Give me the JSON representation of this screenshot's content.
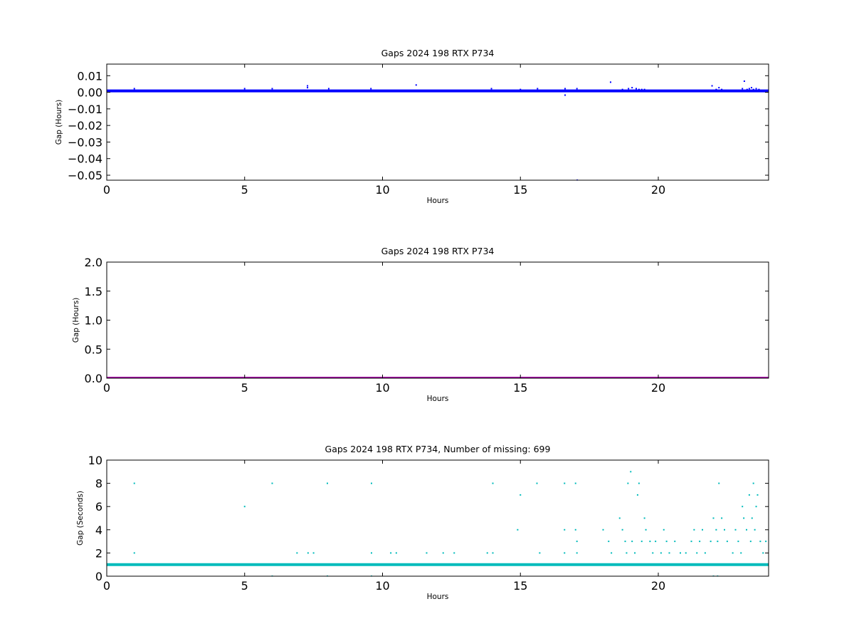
{
  "chart_data": [
    {
      "type": "scatter",
      "title": "Gaps 2024 198 RTX  P734",
      "xlabel": "Hours",
      "ylabel": "Gap (Hours)",
      "xlim": [
        0,
        24
      ],
      "ylim": [
        -0.053,
        0.017
      ],
      "xticks": [
        0,
        5,
        10,
        15,
        20
      ],
      "yticks": [
        0.01,
        0.0,
        -0.01,
        -0.02,
        -0.03,
        -0.04,
        -0.05
      ],
      "ytick_labels": [
        "0.01",
        "0.00",
        "−0.01",
        "−0.02",
        "−0.03",
        "−0.04",
        "−0.05"
      ],
      "grid": false,
      "color": "#0000ff",
      "baseline": {
        "y": 0.00083,
        "x": [
          0,
          24
        ]
      },
      "series": [
        {
          "x": [
            1.0,
            5.0,
            6.0,
            7.28,
            7.28,
            8.05,
            9.58,
            11.22,
            13.95,
            15.0,
            15.62,
            16.62,
            16.62,
            17.05,
            17.06,
            18.27,
            18.7,
            18.92,
            19.05,
            19.2,
            19.3,
            19.4,
            19.5,
            21.95,
            22.1,
            22.2,
            22.3,
            23.05,
            23.12,
            23.22,
            23.3,
            23.38,
            23.45,
            23.55,
            23.65
          ],
          "y": [
            0.0022,
            0.0022,
            0.0022,
            0.0039,
            0.0028,
            0.0022,
            0.0022,
            0.0044,
            0.0022,
            0.0017,
            0.0022,
            0.0022,
            -0.0017,
            0.0022,
            -0.053,
            0.0061,
            0.0017,
            0.0022,
            0.0028,
            0.0022,
            0.0017,
            0.0017,
            0.0017,
            0.0039,
            0.0017,
            0.0028,
            0.0017,
            0.0022,
            0.0067,
            0.0017,
            0.0022,
            0.0028,
            0.0017,
            0.0022,
            0.0017
          ]
        }
      ]
    },
    {
      "type": "scatter",
      "title": "Gaps 2024 198 RTX  P734",
      "xlabel": "Hours",
      "ylabel": "Gap (Hours)",
      "xlim": [
        0,
        24
      ],
      "ylim": [
        0,
        2
      ],
      "xticks": [
        0,
        5,
        10,
        15,
        20
      ],
      "yticks": [
        2.0,
        1.5,
        1.0,
        0.5,
        0.0
      ],
      "ytick_labels": [
        "2.0",
        "1.5",
        "1.0",
        "0.5",
        "0.0"
      ],
      "grid": false,
      "color": "#aa00aa",
      "baseline": {
        "y": 0.0,
        "x": [
          0,
          24
        ]
      },
      "series": []
    },
    {
      "type": "scatter",
      "title": "Gaps 2024 198 RTX  P734, Number of missing: 699",
      "xlabel": "Hours",
      "ylabel": "Gap (Seconds)",
      "xlim": [
        0,
        24
      ],
      "ylim": [
        0,
        10
      ],
      "xticks": [
        0,
        5,
        10,
        15,
        20
      ],
      "yticks": [
        10,
        8,
        6,
        4,
        2,
        0
      ],
      "ytick_labels": [
        "10",
        "8",
        "6",
        "4",
        "2",
        "0"
      ],
      "grid": false,
      "color": "#00bbbb",
      "baseline": {
        "y": 1,
        "x": [
          0,
          24
        ]
      },
      "series": [
        {
          "x": [
            1.0,
            1.0,
            5.0,
            6.0,
            6.0,
            6.9,
            7.3,
            7.5,
            8.0,
            8.0,
            9.6,
            9.6,
            9.6,
            10.3,
            10.5,
            11.6,
            12.2,
            12.6,
            13.8,
            14.0,
            14.0,
            14.9,
            15.0,
            15.7,
            15.6,
            16.6,
            16.6,
            16.6,
            17.0,
            17.0,
            17.05,
            17.05,
            18.0,
            18.2,
            18.3,
            18.6,
            18.7,
            18.8,
            18.85,
            18.9,
            19.0,
            19.05,
            19.15,
            19.25,
            19.3,
            19.4,
            19.5,
            19.55,
            19.7,
            19.8,
            19.9,
            20.1,
            20.2,
            20.3,
            20.4,
            20.6,
            20.8,
            21.0,
            21.2,
            21.3,
            21.4,
            21.5,
            21.6,
            21.7,
            21.9,
            22.0,
            22.1,
            22.15,
            22.2,
            22.3,
            22.4,
            22.5,
            22.7,
            22.8,
            22.9,
            23.0,
            23.05,
            23.1,
            23.2,
            23.3,
            23.35,
            23.4,
            23.45,
            23.5,
            23.55,
            23.6,
            23.7,
            23.8,
            23.9,
            22.0,
            22.15
          ],
          "y": [
            8,
            2,
            6,
            8,
            0,
            2,
            2,
            2,
            8,
            0,
            8,
            2,
            0,
            2,
            2,
            2,
            2,
            2,
            2,
            8,
            2,
            4,
            7,
            2,
            8,
            8,
            4,
            2,
            8,
            4,
            3,
            2,
            4,
            3,
            2,
            5,
            4,
            3,
            2,
            8,
            9,
            3,
            2,
            7,
            8,
            3,
            5,
            4,
            3,
            2,
            3,
            2,
            4,
            3,
            2,
            3,
            2,
            2,
            3,
            4,
            2,
            3,
            4,
            2,
            3,
            5,
            4,
            3,
            8,
            5,
            4,
            3,
            2,
            4,
            3,
            2,
            6,
            5,
            4,
            7,
            3,
            5,
            8,
            4,
            6,
            7,
            3,
            2,
            3,
            0,
            0
          ]
        }
      ]
    }
  ]
}
